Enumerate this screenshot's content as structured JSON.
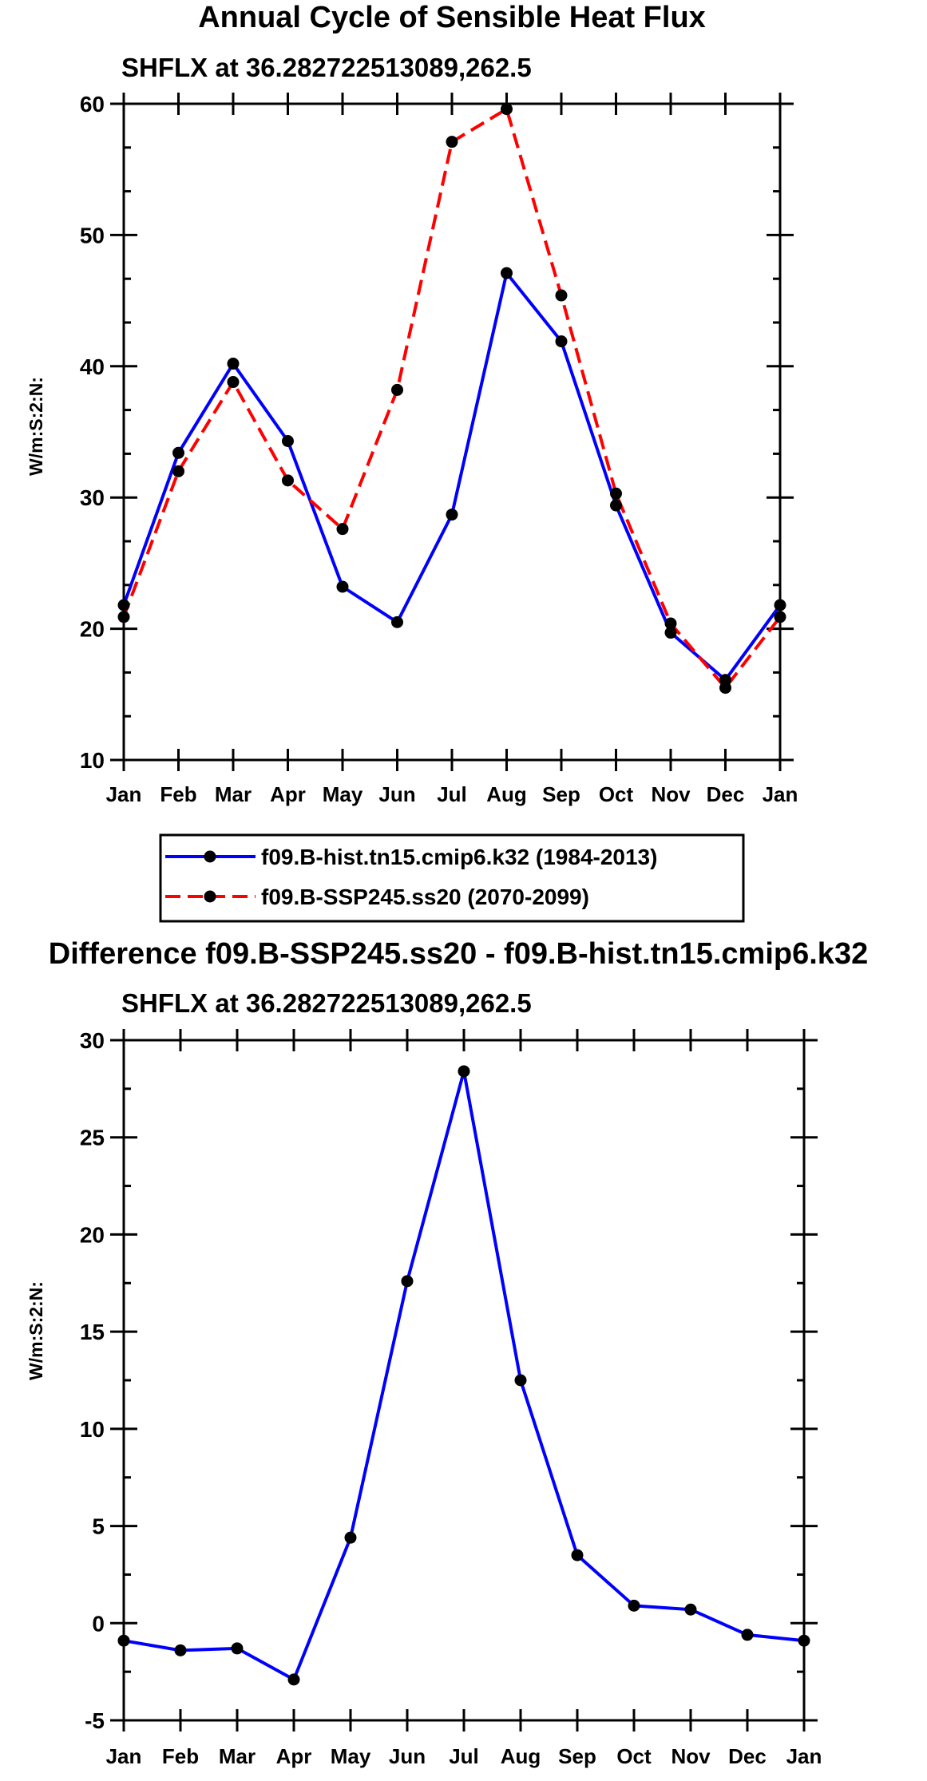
{
  "chart_data": [
    {
      "type": "line",
      "title": "Annual Cycle of Sensible Heat Flux",
      "subtitle": "SHFLX at 36.282722513089,262.5",
      "ylabel": "W/m:S:2:N:",
      "xlabel": "",
      "ylim": [
        10,
        60
      ],
      "yticks": [
        10,
        20,
        30,
        40,
        50,
        60
      ],
      "categories": [
        "Jan",
        "Feb",
        "Mar",
        "Apr",
        "May",
        "Jun",
        "Jul",
        "Aug",
        "Sep",
        "Oct",
        "Nov",
        "Dec",
        "Jan"
      ],
      "grid": false,
      "legend_position": "below",
      "series": [
        {
          "name": "f09.B-hist.tn15.cmip6.k32 (1984-2013)",
          "color": "#0000ff",
          "dash": "solid",
          "values": [
            21.8,
            33.4,
            40.2,
            34.3,
            23.2,
            20.5,
            28.7,
            47.1,
            41.9,
            29.4,
            19.7,
            16.1,
            21.8
          ]
        },
        {
          "name": "f09.B-SSP245.ss20 (2070-2099)",
          "color": "#ff0000",
          "dash": "dashed",
          "values": [
            20.9,
            32.0,
            38.8,
            31.3,
            27.6,
            38.2,
            57.1,
            59.6,
            45.4,
            30.3,
            20.4,
            15.5,
            20.9
          ]
        }
      ]
    },
    {
      "type": "line",
      "title": "Difference f09.B-SSP245.ss20 - f09.B-hist.tn15.cmip6.k32",
      "subtitle": "SHFLX at 36.282722513089,262.5",
      "ylabel": "W/m:S:2:N:",
      "xlabel": "",
      "ylim": [
        -5,
        30
      ],
      "yticks": [
        -5,
        0,
        5,
        10,
        15,
        20,
        25,
        30
      ],
      "categories": [
        "Jan",
        "Feb",
        "Mar",
        "Apr",
        "May",
        "Jun",
        "Jul",
        "Aug",
        "Sep",
        "Oct",
        "Nov",
        "Dec",
        "Jan"
      ],
      "grid": false,
      "series": [
        {
          "name": "Difference",
          "color": "#0000ff",
          "dash": "solid",
          "values": [
            -0.9,
            -1.4,
            -1.3,
            -2.9,
            4.4,
            17.6,
            28.4,
            12.5,
            3.5,
            0.9,
            0.7,
            -0.6,
            -0.9
          ]
        }
      ]
    }
  ]
}
